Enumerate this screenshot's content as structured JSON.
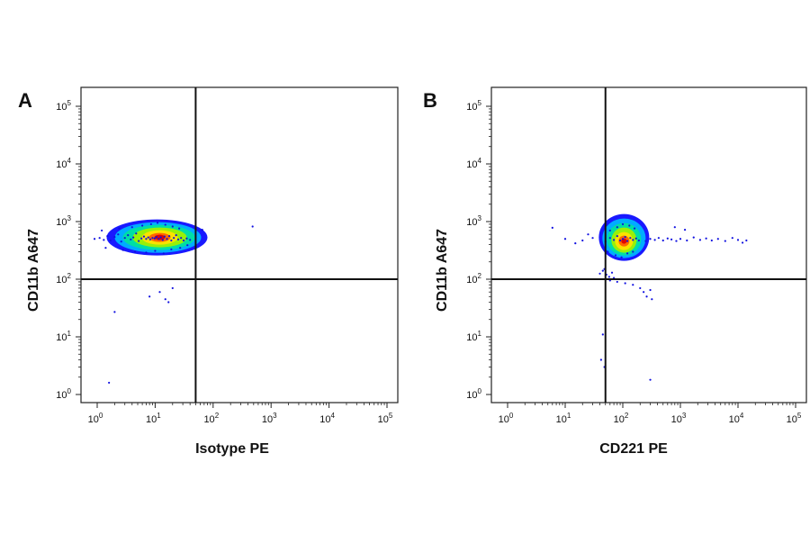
{
  "chart_data": [
    {
      "type": "scatter",
      "panel_label": "A",
      "xlabel": "Isotype PE",
      "ylabel": "CD11b A647",
      "x_scale": "log",
      "y_scale": "log",
      "xlim": [
        1,
        100000
      ],
      "ylim": [
        1,
        100000
      ],
      "x_ticks": [
        "10^0",
        "10^1",
        "10^2",
        "10^3",
        "10^4",
        "10^5"
      ],
      "y_ticks": [
        "10^0",
        "10^1",
        "10^2",
        "10^3",
        "10^4",
        "10^5"
      ],
      "quadrant_gate": {
        "x": 50,
        "y": 100
      },
      "colormap": [
        "#0000ff",
        "#00b4ff",
        "#00e0a0",
        "#a0f000",
        "#ffe000",
        "#ff6000",
        "#e00000"
      ],
      "points": [
        [
          0.9,
          500
        ],
        [
          1.1,
          520
        ],
        [
          1.3,
          480
        ],
        [
          1.5,
          560
        ],
        [
          1.7,
          470
        ],
        [
          2.0,
          540
        ],
        [
          2.3,
          600
        ],
        [
          2.6,
          450
        ],
        [
          3.0,
          520
        ],
        [
          3.4,
          580
        ],
        [
          3.8,
          490
        ],
        [
          4.2,
          530
        ],
        [
          4.7,
          620
        ],
        [
          5.2,
          460
        ],
        [
          5.8,
          510
        ],
        [
          6.4,
          550
        ],
        [
          7.0,
          500
        ],
        [
          7.6,
          530
        ],
        [
          8.2,
          490
        ],
        [
          9.0,
          520
        ],
        [
          9.8,
          510
        ],
        [
          10.5,
          540
        ],
        [
          11.5,
          500
        ],
        [
          12.5,
          530
        ],
        [
          13.5,
          480
        ],
        [
          14.5,
          550
        ],
        [
          16.0,
          500
        ],
        [
          17.5,
          560
        ],
        [
          19.0,
          470
        ],
        [
          21.0,
          520
        ],
        [
          23.0,
          580
        ],
        [
          25.0,
          490
        ],
        [
          28.0,
          520
        ],
        [
          31.0,
          470
        ],
        [
          35.0,
          510
        ],
        [
          40.0,
          480
        ],
        [
          1.2,
          700
        ],
        [
          2.4,
          760
        ],
        [
          4.0,
          800
        ],
        [
          6.0,
          850
        ],
        [
          8.5,
          900
        ],
        [
          11.0,
          950
        ],
        [
          15.0,
          880
        ],
        [
          20.0,
          820
        ],
        [
          26.0,
          760
        ],
        [
          1.4,
          350
        ],
        [
          2.8,
          320
        ],
        [
          4.5,
          300
        ],
        [
          7.0,
          290
        ],
        [
          10.0,
          310
        ],
        [
          14.0,
          280
        ],
        [
          19.0,
          330
        ],
        [
          27.0,
          350
        ],
        [
          36.0,
          390
        ],
        [
          12.0,
          60
        ],
        [
          15.0,
          45
        ],
        [
          17.0,
          40
        ],
        [
          8.0,
          50
        ],
        [
          20.0,
          70
        ],
        [
          2.0,
          27
        ],
        [
          1.6,
          1.6
        ],
        [
          65.0,
          720
        ],
        [
          480.0,
          820
        ]
      ],
      "density_core": {
        "x": 12,
        "y": 530
      }
    },
    {
      "type": "scatter",
      "panel_label": "B",
      "xlabel": "CD221 PE",
      "ylabel": "CD11b A647",
      "x_scale": "log",
      "y_scale": "log",
      "xlim": [
        1,
        100000
      ],
      "ylim": [
        1,
        100000
      ],
      "x_ticks": [
        "10^0",
        "10^1",
        "10^2",
        "10^3",
        "10^4",
        "10^5"
      ],
      "y_ticks": [
        "10^0",
        "10^1",
        "10^2",
        "10^3",
        "10^4",
        "10^5"
      ],
      "quadrant_gate": {
        "x": 50,
        "y": 100
      },
      "colormap": [
        "#0000ff",
        "#00b4ff",
        "#00e0a0",
        "#a0f000",
        "#ffe000",
        "#ff6000",
        "#e00000"
      ],
      "points": [
        [
          50,
          450
        ],
        [
          60,
          520
        ],
        [
          70,
          480
        ],
        [
          80,
          560
        ],
        [
          90,
          470
        ],
        [
          100,
          500
        ],
        [
          110,
          540
        ],
        [
          120,
          460
        ],
        [
          135,
          520
        ],
        [
          150,
          480
        ],
        [
          170,
          510
        ],
        [
          190,
          470
        ],
        [
          60,
          700
        ],
        [
          80,
          800
        ],
        [
          100,
          900
        ],
        [
          130,
          850
        ],
        [
          160,
          760
        ],
        [
          55,
          300
        ],
        [
          75,
          260
        ],
        [
          95,
          240
        ],
        [
          120,
          280
        ],
        [
          150,
          300
        ],
        [
          48,
          150
        ],
        [
          52,
          120
        ],
        [
          58,
          110
        ],
        [
          65,
          130
        ],
        [
          70,
          105
        ],
        [
          45,
          140
        ],
        [
          40,
          125
        ],
        [
          60,
          95
        ],
        [
          80,
          90
        ],
        [
          110,
          85
        ],
        [
          150,
          80
        ],
        [
          200,
          70
        ],
        [
          230,
          60
        ],
        [
          260,
          50
        ],
        [
          300,
          65
        ],
        [
          320,
          45
        ],
        [
          250,
          460
        ],
        [
          300,
          500
        ],
        [
          360,
          480
        ],
        [
          420,
          520
        ],
        [
          500,
          470
        ],
        [
          600,
          510
        ],
        [
          700,
          490
        ],
        [
          850,
          460
        ],
        [
          1000,
          500
        ],
        [
          1300,
          470
        ],
        [
          1700,
          530
        ],
        [
          2200,
          480
        ],
        [
          2800,
          510
        ],
        [
          3500,
          470
        ],
        [
          4500,
          500
        ],
        [
          6000,
          460
        ],
        [
          8000,
          520
        ],
        [
          10000,
          480
        ],
        [
          12000,
          430
        ],
        [
          14000,
          470
        ],
        [
          800,
          800
        ],
        [
          1200,
          720
        ],
        [
          30,
          520
        ],
        [
          25,
          600
        ],
        [
          20,
          470
        ],
        [
          15,
          420
        ],
        [
          10,
          500
        ],
        [
          6,
          780
        ],
        [
          45,
          11
        ],
        [
          42,
          4
        ],
        [
          48,
          3
        ],
        [
          300,
          1.8
        ]
      ],
      "density_core": {
        "x": 105,
        "y": 460
      }
    }
  ]
}
